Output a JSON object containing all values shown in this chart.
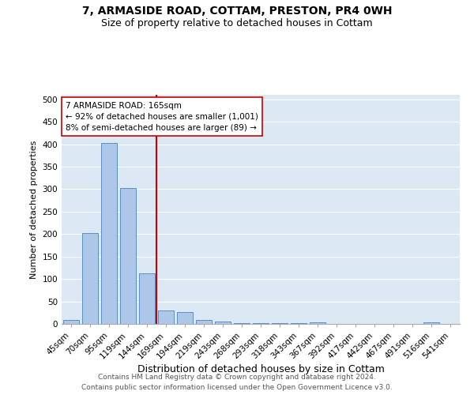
{
  "title": "7, ARMASIDE ROAD, COTTAM, PRESTON, PR4 0WH",
  "subtitle": "Size of property relative to detached houses in Cottam",
  "xlabel": "Distribution of detached houses by size in Cottam",
  "ylabel": "Number of detached properties",
  "bar_labels": [
    "45sqm",
    "70sqm",
    "95sqm",
    "119sqm",
    "144sqm",
    "169sqm",
    "194sqm",
    "219sqm",
    "243sqm",
    "268sqm",
    "293sqm",
    "318sqm",
    "343sqm",
    "367sqm",
    "392sqm",
    "417sqm",
    "442sqm",
    "467sqm",
    "491sqm",
    "516sqm",
    "541sqm"
  ],
  "bar_values": [
    8,
    203,
    403,
    303,
    113,
    30,
    27,
    8,
    5,
    2,
    1,
    1,
    1,
    3,
    0,
    0,
    0,
    0,
    0,
    4,
    0
  ],
  "bar_color": "#aec6e8",
  "bar_edge_color": "#5a8fc2",
  "vline_x_index": 4.5,
  "vline_color": "#cc0000",
  "annotation_text": "7 ARMASIDE ROAD: 165sqm\n← 92% of detached houses are smaller (1,001)\n8% of semi-detached houses are larger (89) →",
  "annotation_box_color": "#ffffff",
  "annotation_box_edge_color": "#cc0000",
  "ylim": [
    0,
    510
  ],
  "yticks": [
    0,
    50,
    100,
    150,
    200,
    250,
    300,
    350,
    400,
    450,
    500
  ],
  "background_color": "#dce9f5",
  "footer_line1": "Contains HM Land Registry data © Crown copyright and database right 2024.",
  "footer_line2": "Contains public sector information licensed under the Open Government Licence v3.0.",
  "title_fontsize": 10,
  "subtitle_fontsize": 9,
  "xlabel_fontsize": 9,
  "ylabel_fontsize": 8,
  "tick_fontsize": 7.5,
  "footer_fontsize": 6.5
}
